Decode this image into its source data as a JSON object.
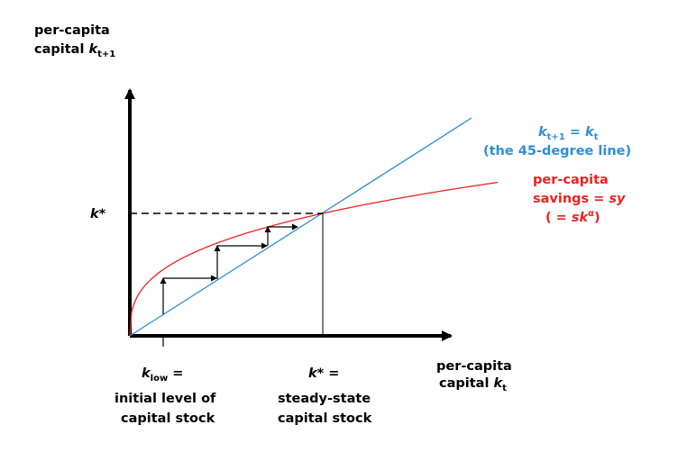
{
  "colors": {
    "axis": "#000000",
    "forty_five_line": "#2e8fd8",
    "savings_curve": "#ee2222",
    "steps": "#000000"
  },
  "y_axis": {
    "line1": "per-capita",
    "line2_prefix": "capital ",
    "line2_var": "k",
    "line2_sub": "t+1"
  },
  "x_axis": {
    "line1": "per-capita",
    "line2_prefix": "capital ",
    "line2_var": "k",
    "line2_sub": "t"
  },
  "kstar_y_label": "k*",
  "forty_five": {
    "k1": "k",
    "sub1": "t+1",
    "eq": " = ",
    "k2": "k",
    "sub2": "t",
    "line2": "(the 45-degree line)"
  },
  "savings": {
    "line1": "per-capita",
    "line2_prefix": "savings = ",
    "line2_var": "sy",
    "line3_prefix": "( = ",
    "line3_var": "sk",
    "line3_sup": "α",
    "line3_suffix": ")"
  },
  "k_low": {
    "var": "k",
    "sub": "low",
    "eq": " =",
    "line2": "initial level of",
    "line3": "capital stock"
  },
  "k_star_x": {
    "var": "k*",
    "eq": " =",
    "line2": "steady-state",
    "line3": "capital stock"
  }
}
